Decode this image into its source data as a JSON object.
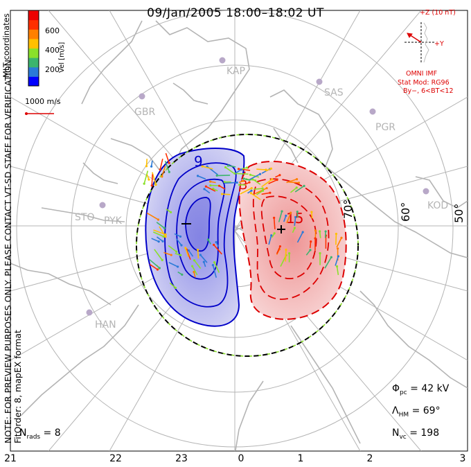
{
  "title": "09/Jan/2005 18:00–18:02 UT",
  "coordinate_system": "MLT coordinates",
  "velocity_colorbar": {
    "label": "Vel [m/s]",
    "ticks": [
      "600",
      "400",
      "200"
    ],
    "colors": [
      "#0000ff",
      "#2a7ad8",
      "#3cb46e",
      "#8ae02a",
      "#ffc000",
      "#ff8000",
      "#ff3000",
      "#ee0000"
    ]
  },
  "velocity_scale": "1000 m/s",
  "preview_note_1": "NOTE: FOR PREVIEW PURPOSES ONLY. PLEASE CONTACT VT-SD STAFF FOR VERIFICATION.",
  "preview_note_2": "FitOrder: 8,  mapEX format",
  "imf": {
    "z_label": "+Z (10 nT)",
    "y_label": "+Y",
    "source": "OMNI IMF",
    "stat_mod": "Stat Mod: RG96",
    "condition": "By−, 6<BT<12"
  },
  "latitude_labels": [
    "70°",
    "60°",
    "50°"
  ],
  "stations": [
    "KAP",
    "SAS",
    "PGR",
    "GBR",
    "KOD",
    "STO",
    "PYK",
    "HAN"
  ],
  "potential_labels": {
    "min_contour": "9",
    "max_contour": "15"
  },
  "stats": {
    "phi_pc_symbol": "Φ",
    "phi_pc_sub": "pc",
    "phi_pc_value": " = 42 kV",
    "lambda_hm_symbol": "Λ",
    "lambda_hm_sub": "HM",
    "lambda_hm_value": " = 69°",
    "n_vc_symbol": "N",
    "n_vc_sub": "vc",
    "n_vc_value": " = 198",
    "n_rads_symbol": "N",
    "n_rads_sub": "rads",
    "n_rads_value": " = 8"
  },
  "mlt_labels": [
    "21",
    "22",
    "23",
    "0",
    "1",
    "2",
    "3"
  ],
  "colors": {
    "negative_cell": "#0000c8",
    "positive_cell": "#dd0000",
    "negative_fill": "#c8c8f0",
    "positive_fill": "#f5c8c8",
    "grid": "#b4b4b4",
    "coast": "#b4b4b4",
    "imf": "#dd0000",
    "station": "#b8a8c8"
  }
}
